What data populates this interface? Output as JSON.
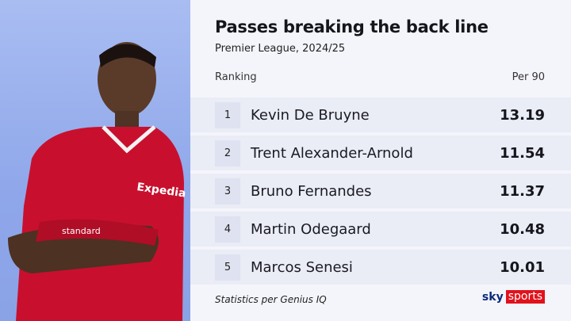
{
  "title": "Passes breaking the back line",
  "subtitle": "Premier League, 2024/25",
  "headers": {
    "ranking": "Ranking",
    "value": "Per 90"
  },
  "rows": [
    {
      "rank": "1",
      "name": "Kevin De Bruyne",
      "value": "13.19"
    },
    {
      "rank": "2",
      "name": "Trent Alexander-Arnold",
      "value": "11.54"
    },
    {
      "rank": "3",
      "name": "Bruno Fernandes",
      "value": "11.37"
    },
    {
      "rank": "4",
      "name": "Martin Odegaard",
      "value": "10.48"
    },
    {
      "rank": "5",
      "name": "Marcos Senesi",
      "value": "10.01"
    }
  ],
  "footer": "Statistics per Genius IQ",
  "logo": {
    "sky": "sky",
    "sports": "sports"
  },
  "photo_text": {
    "sponsor": "Expedia",
    "sleeve": "standard"
  },
  "colors": {
    "accent": "#e1121b",
    "shirt": "#c8102e"
  }
}
